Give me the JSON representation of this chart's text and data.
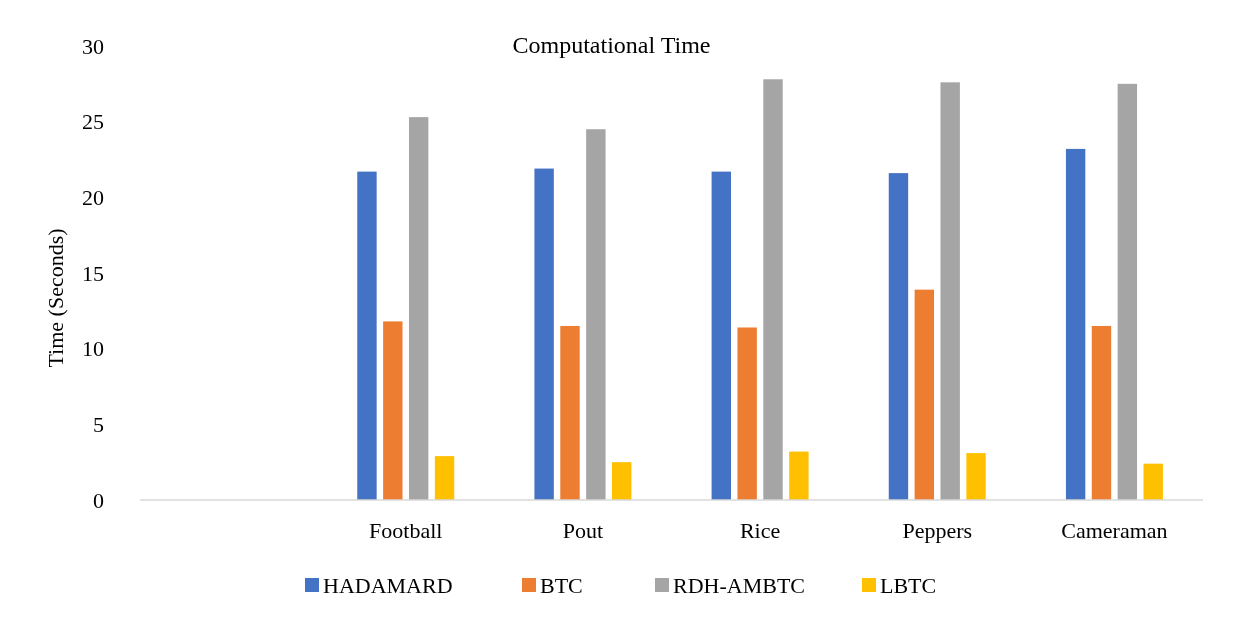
{
  "chart_data": {
    "type": "bar",
    "title": "Computational Time",
    "ylabel": "Time (Seconds)",
    "categories": [
      null,
      "Football",
      "Pout",
      "Rice",
      "Peppers",
      "Cameraman"
    ],
    "series": [
      {
        "name": "HADAMARD",
        "color": "#4472c4",
        "values": [
          null,
          21.7,
          21.9,
          21.7,
          21.6,
          23.2
        ]
      },
      {
        "name": "BTC",
        "color": "#ed7d31",
        "values": [
          null,
          11.8,
          11.5,
          11.4,
          13.9,
          11.5
        ]
      },
      {
        "name": "RDH-AMBTC",
        "color": "#a5a5a5",
        "values": [
          null,
          25.3,
          24.5,
          27.8,
          27.6,
          27.5
        ]
      },
      {
        "name": "LBTC",
        "color": "#ffc000",
        "values": [
          null,
          2.9,
          2.5,
          3.2,
          3.1,
          2.4
        ]
      }
    ],
    "ylim": [
      0,
      30
    ],
    "yticks": [
      0,
      5,
      10,
      15,
      20,
      25,
      30
    ],
    "grid": false,
    "legend": "bottom"
  }
}
